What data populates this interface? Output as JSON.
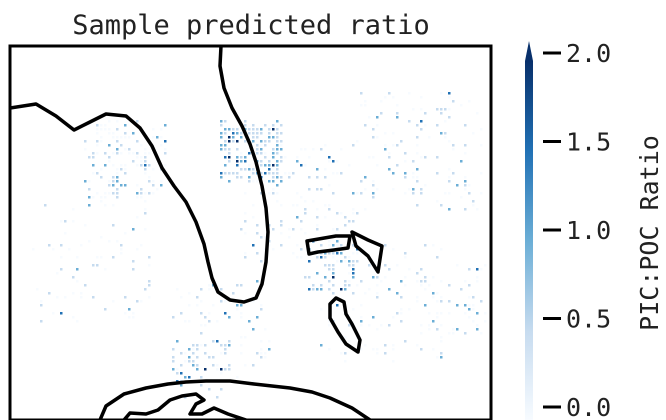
{
  "title": "Sample predicted ratio",
  "colorbar": {
    "label": "PIC:POC Ratio",
    "min": 0.0,
    "max": 2.0,
    "extend": "max",
    "ticks": [
      "0.0",
      "0.5",
      "1.0",
      "1.5",
      "2.0"
    ],
    "tick_values": [
      0.0,
      0.5,
      1.0,
      1.5,
      2.0
    ],
    "colors": [
      "#f7fbff",
      "#c6dbef",
      "#6baed6",
      "#2171b5",
      "#08306b"
    ]
  },
  "map": {
    "land_outline_color": "#000000",
    "background": "#ffffff"
  }
}
